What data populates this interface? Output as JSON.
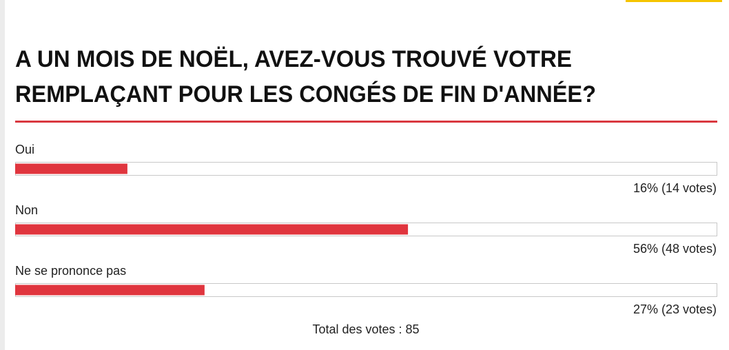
{
  "chart_data": {
    "type": "bar",
    "orientation": "horizontal",
    "title": [
      "A UN MOIS DE NOËL, AVEZ-VOUS TROUVÉ VOTRE",
      "REMPLAÇANT POUR LES CONGÉS DE FIN D'ANNÉE?"
    ],
    "categories": [
      "Oui",
      "Non",
      "Ne se prononce pas"
    ],
    "values": [
      16,
      56,
      27
    ],
    "value_labels": [
      "16% (14 votes)",
      "56% (48 votes)",
      "27% (23 votes)"
    ],
    "color": "#e0353e",
    "xlim": [
      0,
      100
    ],
    "footer": "Total des votes : 85"
  }
}
